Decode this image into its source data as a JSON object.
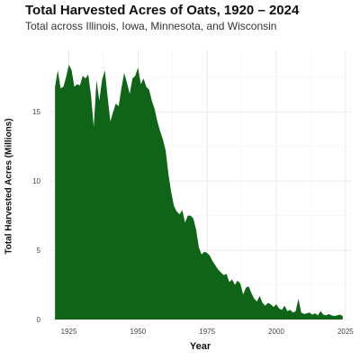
{
  "chart_data": {
    "type": "area",
    "title": "Total Harvested Acres of Oats, 1920 – 2024",
    "subtitle": "Total across Illinois, Iowa, Minnesota, and Wisconsin",
    "xlabel": "Year",
    "ylabel": "Total Harvested Acres  (Millions)",
    "xlim": [
      1918,
      2027
    ],
    "ylim": [
      0,
      19.5
    ],
    "x_ticks": [
      1925,
      1950,
      1975,
      2000,
      2025
    ],
    "y_ticks": [
      0,
      5,
      10,
      15
    ],
    "grid": true,
    "fill_color": "#0f6418",
    "series": [
      {
        "x": [
          1920,
          1921,
          1922,
          1923,
          1924,
          1925,
          1926,
          1927,
          1928,
          1929,
          1930,
          1931,
          1932,
          1933,
          1934,
          1935,
          1936,
          1937,
          1938,
          1939,
          1940,
          1941,
          1942,
          1943,
          1944,
          1945,
          1946,
          1947,
          1948,
          1949,
          1950,
          1951,
          1952,
          1953,
          1954,
          1955,
          1956,
          1957,
          1958,
          1959,
          1960,
          1961,
          1962,
          1963,
          1964,
          1965,
          1966,
          1967,
          1968,
          1969,
          1970,
          1971,
          1972,
          1973,
          1974,
          1975,
          1976,
          1977,
          1978,
          1979,
          1980,
          1981,
          1982,
          1983,
          1984,
          1985,
          1986,
          1987,
          1988,
          1989,
          1990,
          1991,
          1992,
          1993,
          1994,
          1995,
          1996,
          1997,
          1998,
          1999,
          2000,
          2001,
          2002,
          2003,
          2004,
          2005,
          2006,
          2007,
          2008,
          2009,
          2010,
          2011,
          2012,
          2013,
          2014,
          2015,
          2016,
          2017,
          2018,
          2019,
          2020,
          2021,
          2022,
          2023,
          2024
        ],
        "y": [
          16.8,
          18.0,
          16.7,
          16.8,
          17.5,
          18.4,
          18.0,
          16.8,
          17.0,
          16.9,
          17.6,
          17.4,
          17.7,
          16.2,
          13.9,
          17.3,
          15.8,
          17.3,
          18.0,
          16.1,
          14.3,
          15.0,
          15.6,
          15.4,
          16.7,
          17.8,
          17.1,
          16.3,
          17.4,
          17.6,
          18.2,
          17.0,
          17.4,
          16.8,
          16.6,
          15.8,
          15.2,
          14.3,
          13.6,
          13.0,
          12.2,
          10.5,
          9.2,
          8.2,
          7.8,
          7.6,
          7.9,
          7.0,
          7.5,
          7.5,
          7.3,
          6.5,
          5.2,
          4.7,
          4.9,
          4.8,
          4.6,
          4.2,
          3.9,
          3.6,
          3.4,
          3.2,
          3.3,
          2.7,
          2.9,
          2.5,
          2.8,
          2.6,
          1.8,
          2.3,
          2.4,
          1.9,
          1.5,
          1.3,
          1.7,
          1.2,
          1.0,
          1.2,
          1.1,
          0.9,
          1.1,
          0.8,
          0.7,
          1.0,
          0.6,
          0.7,
          0.5,
          0.6,
          1.5,
          0.5,
          0.4,
          0.45,
          0.5,
          0.35,
          0.45,
          0.3,
          0.6,
          0.35,
          0.3,
          0.4,
          0.3,
          0.25,
          0.3,
          0.35,
          0.25
        ]
      }
    ]
  }
}
